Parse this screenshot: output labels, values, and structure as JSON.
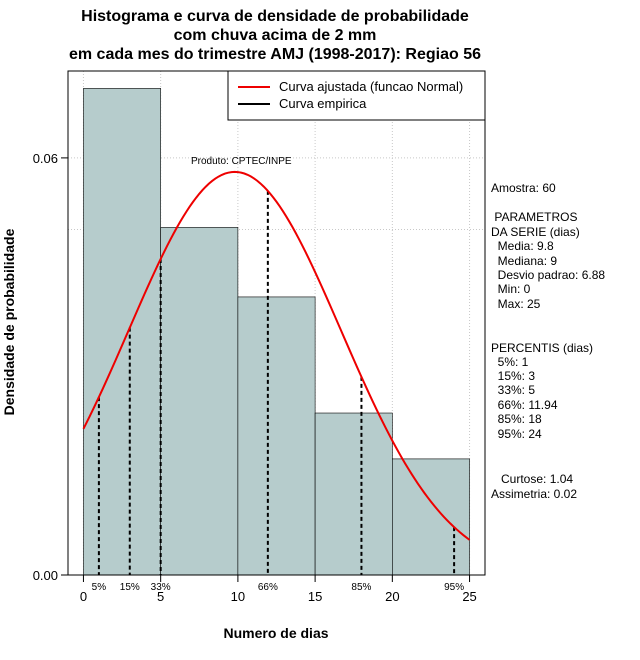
{
  "chart_data": {
    "type": "histogram",
    "title_lines": [
      "Histograma e curva de densidade de probabilidade",
      "com chuva acima de 2 mm",
      "em cada mes do trimestre AMJ (1998-2017): Regiao 56"
    ],
    "xlabel": "Numero de dias",
    "ylabel": "Densidade de probabilidade",
    "xlim": [
      -1,
      26
    ],
    "ylim": [
      0,
      0.0725
    ],
    "x_ticks": [
      0,
      5,
      10,
      15,
      20,
      25
    ],
    "x_tick_labels": [
      "0",
      "5",
      "10",
      "15",
      "20",
      "25"
    ],
    "y_ticks": [
      0,
      0.06
    ],
    "y_tick_labels": [
      "0.00",
      "0.06"
    ],
    "grid_x": [
      0,
      5,
      10,
      15,
      20,
      25
    ],
    "grid_y": [
      0.06,
      0.0497
    ],
    "bins": [
      {
        "from": 0,
        "to": 5,
        "density": 0.07
      },
      {
        "from": 5,
        "to": 10,
        "density": 0.05
      },
      {
        "from": 10,
        "to": 15,
        "density": 0.04
      },
      {
        "from": 15,
        "to": 20,
        "density": 0.0233
      },
      {
        "from": 20,
        "to": 25,
        "density": 0.0167
      }
    ],
    "bar_color": "#b6cccc",
    "normal_curve": {
      "mean": 9.8,
      "sd": 6.88,
      "x_from": 0,
      "x_to": 25,
      "color": "#ee0000"
    },
    "percentile_markers": [
      {
        "label": "5%",
        "x": 1
      },
      {
        "label": "15%",
        "x": 3
      },
      {
        "label": "33%",
        "x": 5
      },
      {
        "label": "66%",
        "x": 11.94
      },
      {
        "label": "85%",
        "x": 18
      },
      {
        "label": "95%",
        "x": 24
      }
    ],
    "legend": {
      "position": "top-right",
      "entries": [
        {
          "label": "Curva ajustada (funcao Normal)",
          "color": "#ee0000"
        },
        {
          "label": "Curva empirica",
          "color": "#000000"
        }
      ]
    },
    "product_note": "Produto: CPTEC/INPE",
    "side_panel": [
      "Amostra: 60",
      " PARAMETROS",
      "DA SERIE (dias)",
      "  Media: 9.8",
      "  Mediana: 9",
      "  Desvio padrao: 6.88",
      "  Min: 0",
      "  Max: 25",
      "PERCENTIS (dias)",
      "  5%: 1",
      "  15%: 3",
      "  33%: 5",
      "  66%: 11.94",
      "  85%: 18",
      "  95%: 24",
      "   Curtose: 1.04",
      "Assimetria: 0.02"
    ]
  }
}
